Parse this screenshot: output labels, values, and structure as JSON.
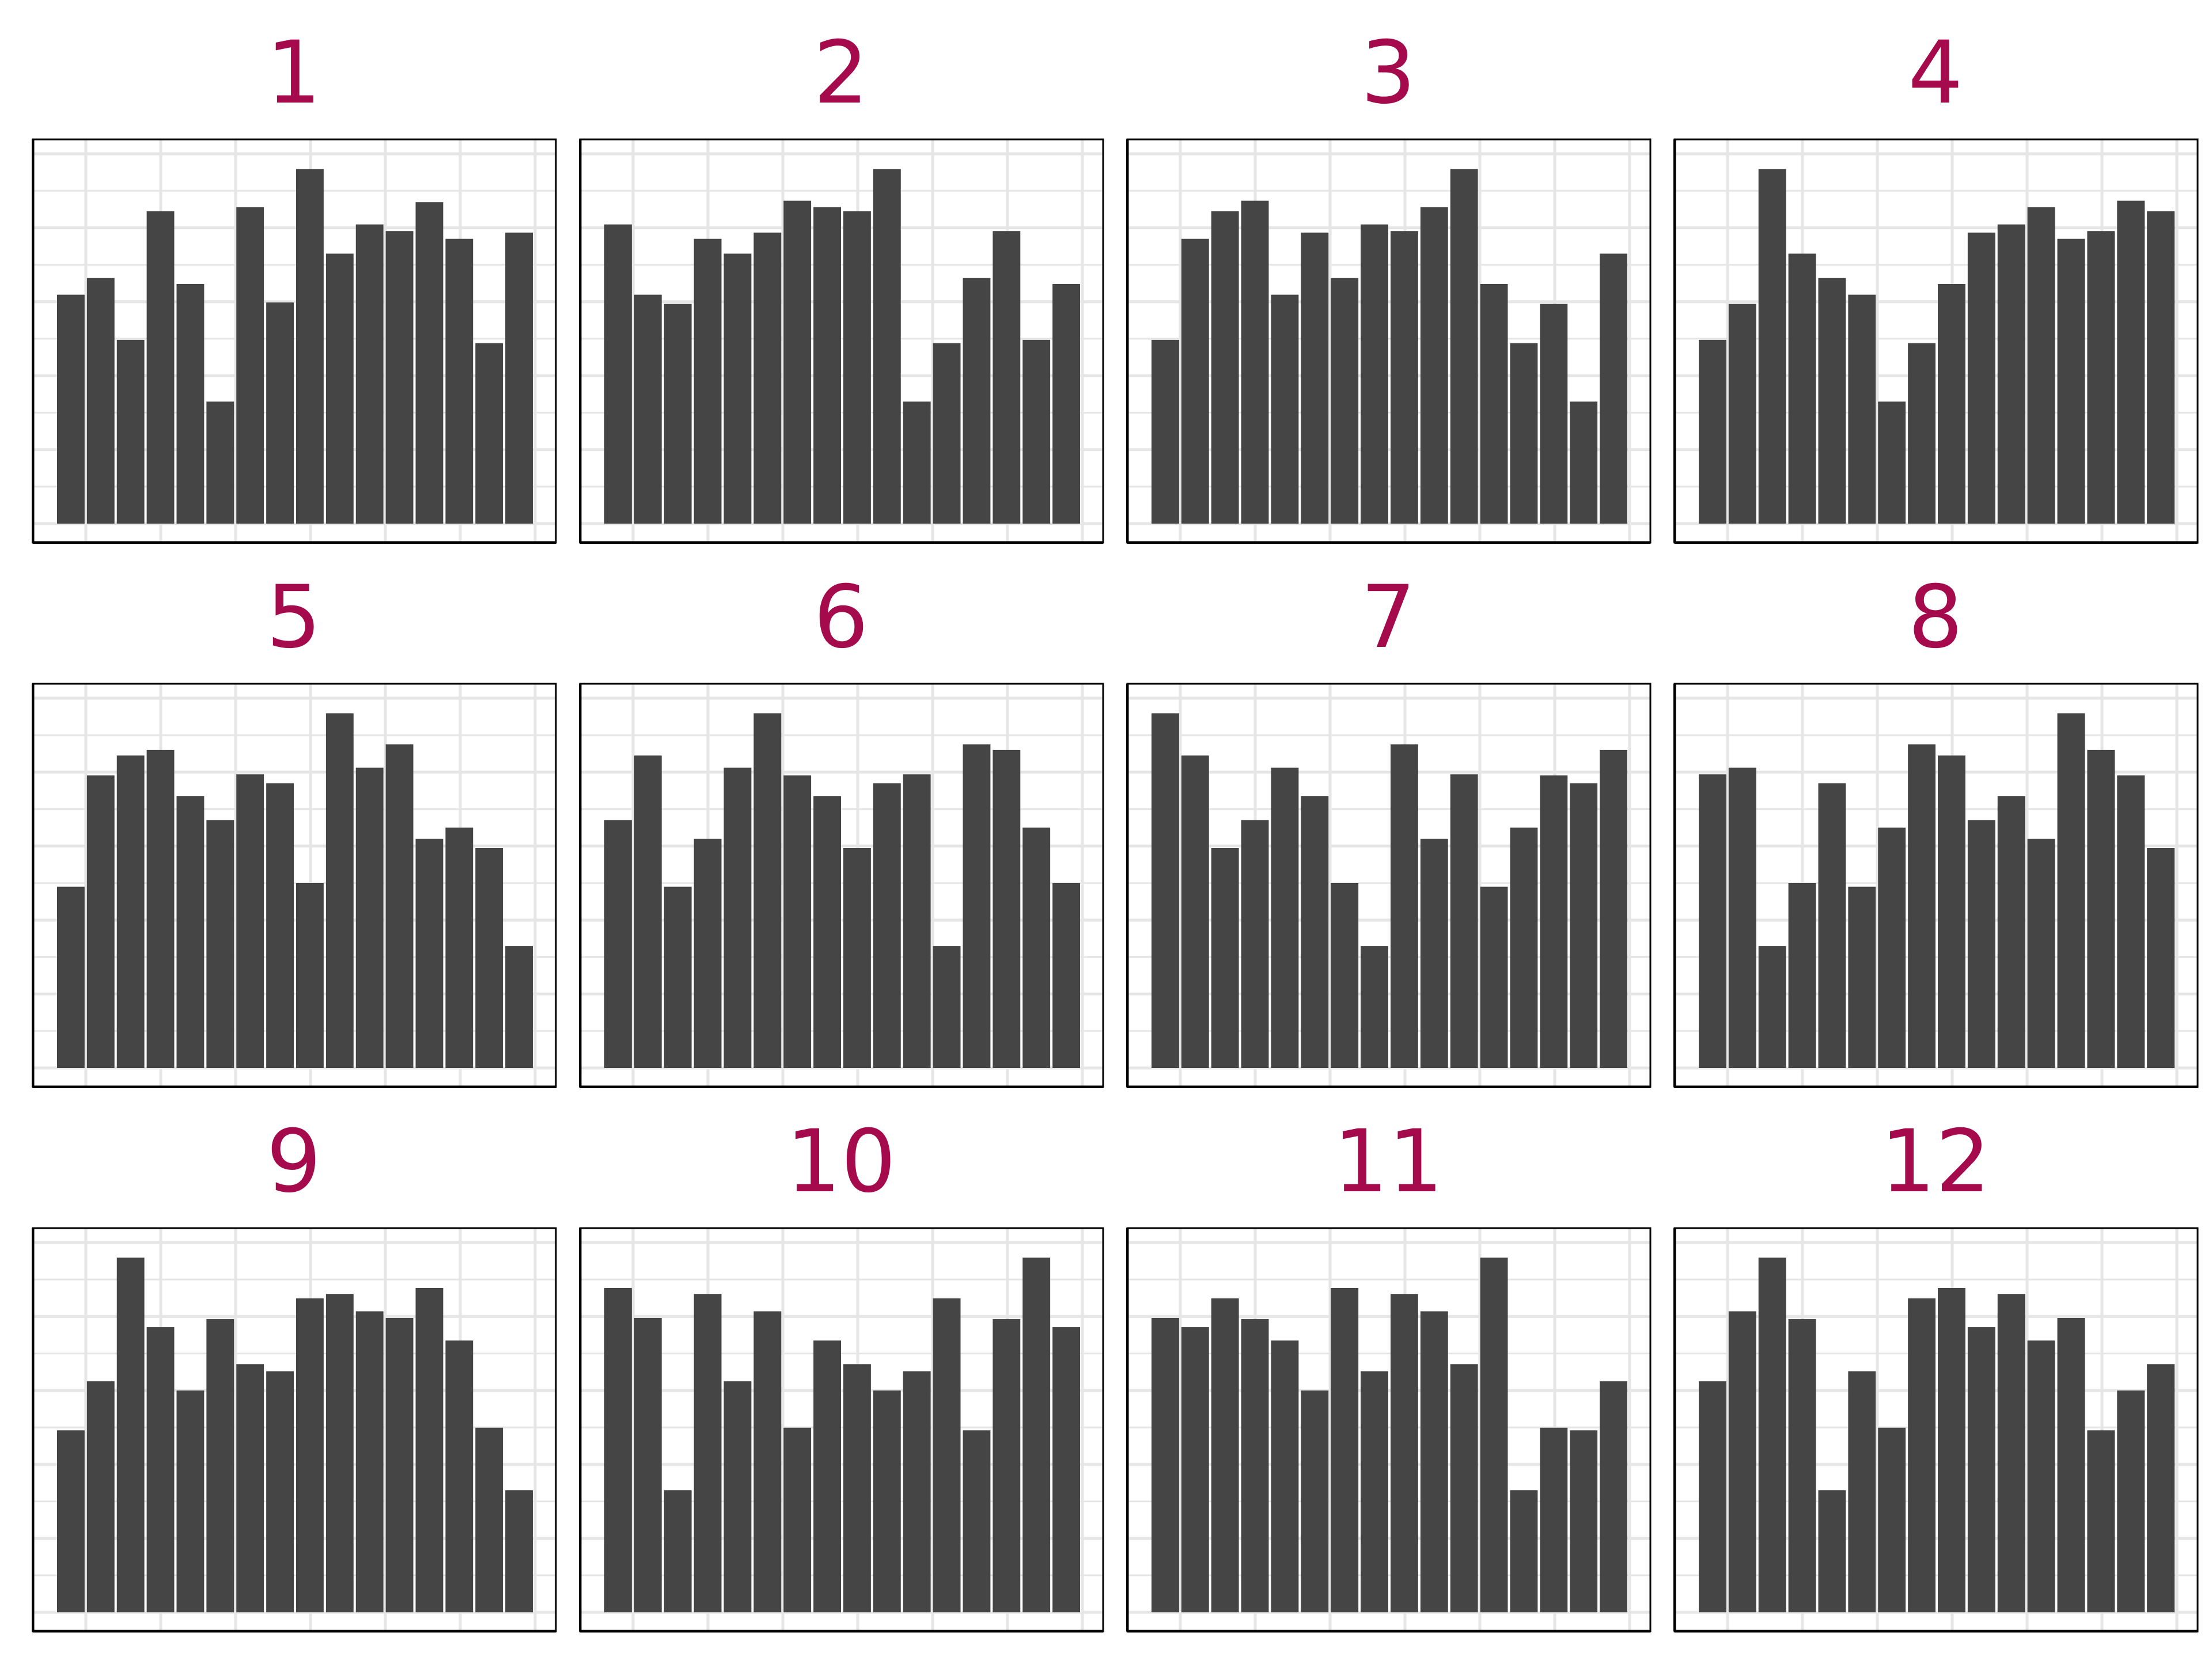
{
  "chart_data": [
    {
      "type": "bar",
      "title": "1",
      "ylim": [
        0,
        100
      ],
      "values": [
        61.9,
        66.4,
        49.7,
        84.5,
        64.8,
        33.0,
        85.6,
        59.8,
        95.9,
        73.0,
        80.9,
        79.1,
        86.9,
        77.0,
        48.8,
        78.7
      ]
    },
    {
      "type": "bar",
      "title": "2",
      "ylim": [
        0,
        100
      ],
      "values": [
        80.9,
        61.9,
        59.4,
        77.0,
        73.0,
        78.7,
        87.3,
        85.6,
        84.5,
        95.9,
        33.0,
        48.8,
        66.4,
        79.1,
        49.7,
        64.8
      ]
    },
    {
      "type": "bar",
      "title": "3",
      "ylim": [
        0,
        100
      ],
      "values": [
        49.7,
        77.0,
        84.5,
        87.3,
        61.9,
        78.7,
        66.4,
        80.9,
        79.1,
        85.6,
        95.9,
        64.8,
        48.8,
        59.4,
        33.0,
        73.0
      ]
    },
    {
      "type": "bar",
      "title": "4",
      "ylim": [
        0,
        100
      ],
      "values": [
        49.7,
        59.4,
        95.9,
        73.0,
        66.4,
        61.9,
        33.0,
        48.8,
        64.8,
        78.7,
        80.9,
        85.6,
        77.0,
        79.1,
        87.3,
        84.5
      ]
    },
    {
      "type": "bar",
      "title": "5",
      "ylim": [
        0,
        100
      ],
      "values": [
        49.0,
        79.1,
        84.5,
        86.0,
        73.5,
        67.0,
        79.4,
        77.0,
        50.0,
        95.9,
        81.2,
        87.5,
        62.0,
        65.0,
        59.5,
        33.0
      ]
    },
    {
      "type": "bar",
      "title": "6",
      "ylim": [
        0,
        100
      ],
      "values": [
        67.0,
        84.5,
        49.0,
        62.0,
        81.2,
        95.9,
        79.1,
        73.5,
        59.5,
        77.0,
        79.4,
        33.0,
        87.5,
        86.0,
        65.0,
        50.0
      ]
    },
    {
      "type": "bar",
      "title": "7",
      "ylim": [
        0,
        100
      ],
      "values": [
        95.9,
        84.5,
        59.5,
        67.0,
        81.2,
        73.5,
        50.0,
        33.0,
        87.5,
        62.0,
        79.4,
        49.0,
        65.0,
        79.1,
        77.0,
        86.0
      ]
    },
    {
      "type": "bar",
      "title": "8",
      "ylim": [
        0,
        100
      ],
      "values": [
        79.4,
        81.2,
        33.0,
        50.0,
        77.0,
        49.0,
        65.0,
        87.5,
        84.5,
        67.0,
        73.5,
        62.0,
        95.9,
        86.0,
        79.1,
        59.5
      ]
    },
    {
      "type": "bar",
      "title": "9",
      "ylim": [
        0,
        100
      ],
      "values": [
        49.2,
        62.5,
        95.9,
        77.1,
        60.0,
        79.3,
        67.1,
        65.2,
        84.9,
        86.1,
        81.4,
        79.6,
        87.7,
        73.5,
        49.9,
        33.0
      ]
    },
    {
      "type": "bar",
      "title": "10",
      "ylim": [
        0,
        100
      ],
      "values": [
        87.7,
        79.6,
        33.0,
        86.1,
        62.5,
        81.4,
        49.9,
        73.5,
        67.1,
        60.0,
        65.2,
        84.9,
        49.2,
        79.3,
        95.9,
        77.1
      ]
    },
    {
      "type": "bar",
      "title": "11",
      "ylim": [
        0,
        100
      ],
      "values": [
        79.6,
        77.1,
        84.9,
        79.3,
        73.5,
        60.0,
        87.7,
        65.2,
        86.1,
        81.4,
        67.1,
        95.9,
        33.0,
        49.9,
        49.2,
        62.5
      ]
    },
    {
      "type": "bar",
      "title": "12",
      "ylim": [
        0,
        100
      ],
      "values": [
        62.5,
        81.4,
        95.9,
        79.3,
        33.0,
        65.2,
        49.9,
        84.9,
        87.7,
        77.1,
        86.1,
        73.5,
        79.6,
        49.2,
        60.0,
        67.1
      ]
    }
  ],
  "colors": {
    "bar": "#454545",
    "title": "#a50a4d",
    "grid": "#e6e6e6",
    "frame": "#000000"
  }
}
